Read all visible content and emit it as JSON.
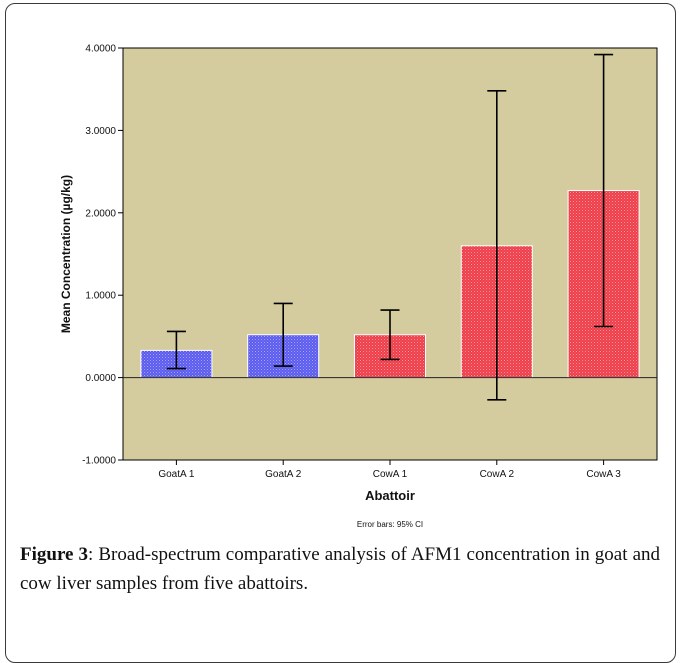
{
  "chart_data": {
    "type": "bar",
    "categories": [
      "GoatA 1",
      "GoatA 2",
      "CowA 1",
      "CowA 2",
      "CowA 3"
    ],
    "values": [
      0.33,
      0.52,
      0.52,
      1.6,
      2.27
    ],
    "error_bars": {
      "lower": [
        0.11,
        0.14,
        0.22,
        -0.27,
        0.62
      ],
      "upper": [
        0.56,
        0.9,
        0.82,
        3.48,
        3.92
      ]
    },
    "bar_colors": [
      "#5b5bf0",
      "#5b5bf0",
      "#ef3e4a",
      "#ef3e4a",
      "#ef3e4a"
    ],
    "xlabel": "Abattoir",
    "ylabel": "Mean Concentration (µg/kg)",
    "ylim": [
      -1.0,
      4.0
    ],
    "yticks": [
      -1.0,
      0.0,
      1.0,
      2.0,
      3.0,
      4.0
    ],
    "ytick_labels": [
      "-1.0000",
      "0.0000",
      "1.0000",
      "2.0000",
      "3.0000",
      "4.0000"
    ],
    "note": "Error bars: 95% CI",
    "plot_background": "#d4cc9e",
    "grid": false
  },
  "caption": {
    "label": "Figure 3",
    "text": ": Broad-spectrum comparative analysis of AFM1 concentration in goat and cow liver samples from five abattoirs."
  }
}
